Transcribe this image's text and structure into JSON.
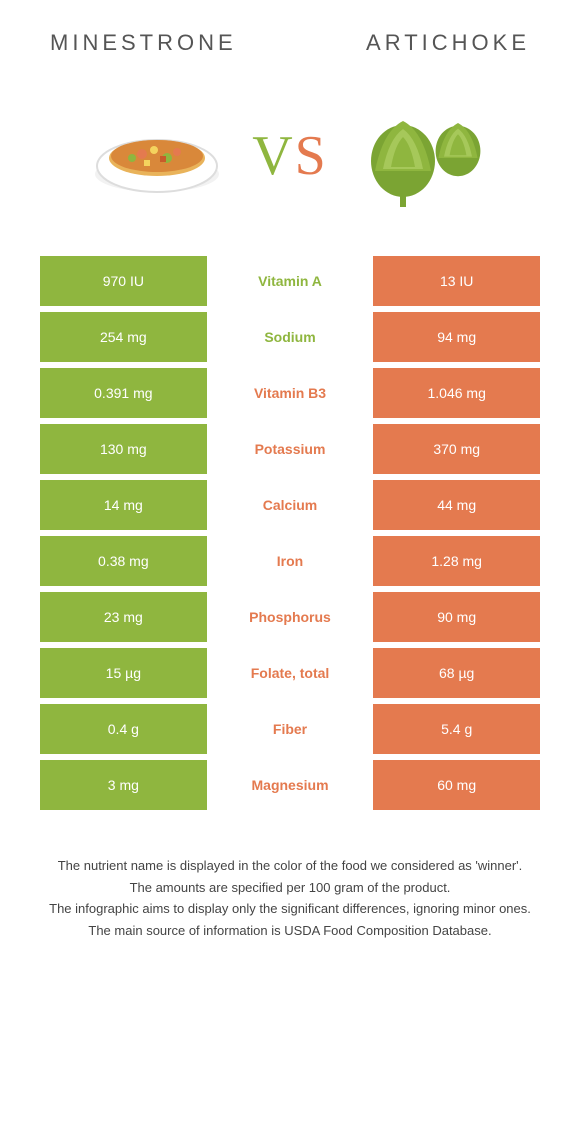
{
  "header": {
    "left_title": "MINESTRONE",
    "right_title": "ARTICHOKE"
  },
  "vs": {
    "label": "VS",
    "left_color": "#8fb63f",
    "right_color": "#e47a4f"
  },
  "colors": {
    "left_bg": "#8fb63f",
    "right_bg": "#e47a4f",
    "left_text": "#8fb63f",
    "right_text": "#e47a4f"
  },
  "rows": [
    {
      "left": "970 IU",
      "name": "Vitamin A",
      "right": "13 IU",
      "winner": "left"
    },
    {
      "left": "254 mg",
      "name": "Sodium",
      "right": "94 mg",
      "winner": "left"
    },
    {
      "left": "0.391 mg",
      "name": "Vitamin B3",
      "right": "1.046 mg",
      "winner": "right"
    },
    {
      "left": "130 mg",
      "name": "Potassium",
      "right": "370 mg",
      "winner": "right"
    },
    {
      "left": "14 mg",
      "name": "Calcium",
      "right": "44 mg",
      "winner": "right"
    },
    {
      "left": "0.38 mg",
      "name": "Iron",
      "right": "1.28 mg",
      "winner": "right"
    },
    {
      "left": "23 mg",
      "name": "Phosphorus",
      "right": "90 mg",
      "winner": "right"
    },
    {
      "left": "15 µg",
      "name": "Folate, total",
      "right": "68 µg",
      "winner": "right"
    },
    {
      "left": "0.4 g",
      "name": "Fiber",
      "right": "5.4 g",
      "winner": "right"
    },
    {
      "left": "3 mg",
      "name": "Magnesium",
      "right": "60 mg",
      "winner": "right"
    }
  ],
  "footnotes": [
    "The nutrient name is displayed in the color of the food we considered as 'winner'.",
    "The amounts are specified per 100 gram of the product.",
    "The infographic aims to display only the significant differences, ignoring minor ones.",
    "The main source of information is USDA Food Composition Database."
  ]
}
